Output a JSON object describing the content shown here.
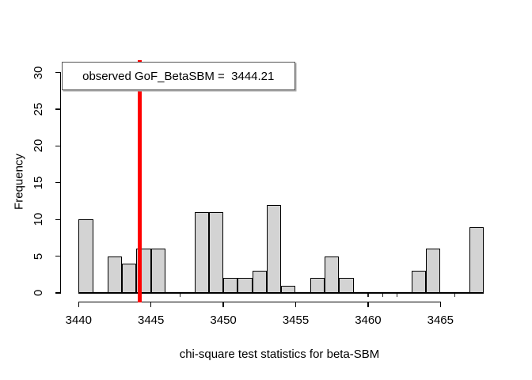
{
  "legend": {
    "text": "observed GoF_BetaSBM =  3444.21"
  },
  "chart_data": {
    "type": "bar",
    "subtype": "histogram",
    "title": "",
    "xlabel": "chi-square test statistics for beta-SBM",
    "ylabel": "Frequency",
    "x_ticks": [
      3440,
      3445,
      3450,
      3455,
      3460,
      3465
    ],
    "y_ticks": [
      0,
      5,
      10,
      15,
      20,
      25,
      30
    ],
    "xlim": [
      3438.9,
      3469.1
    ],
    "ylim": [
      0,
      30
    ],
    "grid": false,
    "legend_position": "topleft",
    "bin_width": 1,
    "bins": [
      {
        "start": 3440,
        "count": 10
      },
      {
        "start": 3441,
        "count": 0
      },
      {
        "start": 3442,
        "count": 5
      },
      {
        "start": 3443,
        "count": 4
      },
      {
        "start": 3444,
        "count": 6
      },
      {
        "start": 3445,
        "count": 6
      },
      {
        "start": 3446,
        "count": 0
      },
      {
        "start": 3447,
        "count": 0
      },
      {
        "start": 3448,
        "count": 11
      },
      {
        "start": 3449,
        "count": 11
      },
      {
        "start": 3450,
        "count": 2
      },
      {
        "start": 3451,
        "count": 2
      },
      {
        "start": 3452,
        "count": 3
      },
      {
        "start": 3453,
        "count": 12
      },
      {
        "start": 3454,
        "count": 1
      },
      {
        "start": 3455,
        "count": 0
      },
      {
        "start": 3456,
        "count": 2
      },
      {
        "start": 3457,
        "count": 5
      },
      {
        "start": 3458,
        "count": 2
      },
      {
        "start": 3459,
        "count": 0
      },
      {
        "start": 3460,
        "count": 0
      },
      {
        "start": 3461,
        "count": 0
      },
      {
        "start": 3462,
        "count": 0
      },
      {
        "start": 3463,
        "count": 3
      },
      {
        "start": 3464,
        "count": 6
      },
      {
        "start": 3465,
        "count": 0
      },
      {
        "start": 3466,
        "count": 0
      },
      {
        "start": 3467,
        "count": 9
      }
    ],
    "observed_value": 3444.21,
    "annotation": "observed GoF_BetaSBM =  3444.21",
    "colors": {
      "bar_fill": "#d3d3d3",
      "bar_border": "#000000",
      "observed_line": "#ff0000",
      "axis": "#000000",
      "background": "#ffffff"
    }
  }
}
